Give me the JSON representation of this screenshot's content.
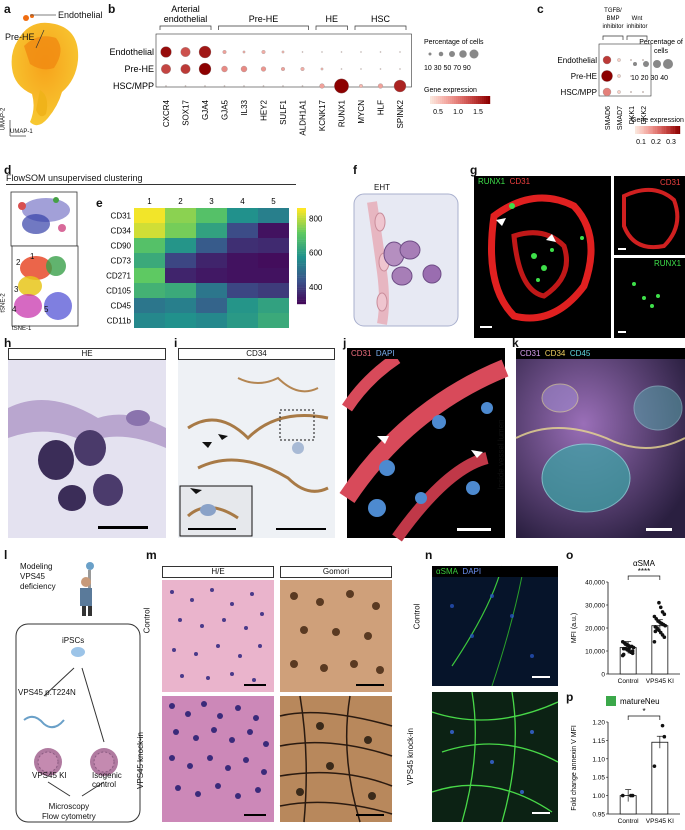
{
  "panels": {
    "a": "a",
    "b": "b",
    "c": "c",
    "d": "d",
    "e": "e",
    "f": "f",
    "g": "g",
    "h": "h",
    "i": "i",
    "j": "j",
    "k": "k",
    "l": "l",
    "m": "m",
    "n": "n",
    "o": "o",
    "p": "p"
  },
  "a": {
    "endothelial": "Endothelial",
    "prehe": "Pre-HE",
    "umap2": "UMAP-2",
    "umap1": "UMAP-1"
  },
  "b": {
    "groups": [
      "Arterial\nendothelial",
      "Pre-HE",
      "HE",
      "HSC"
    ],
    "rows": [
      "Endothelial",
      "Pre-HE",
      "HSC/MPP"
    ],
    "genes": [
      "CXCR4",
      "SOX17",
      "GJA4",
      "GJA5",
      "IL33",
      "HEY2",
      "SULF1",
      "ALDH1A1",
      "KCNK17",
      "RUNX1",
      "MYCN",
      "HLF",
      "SPINK2"
    ],
    "size_legend_title": "Percentage of cells",
    "size_legend_ticks": "10 30 50 70 90",
    "color_legend_title": "Gene expression",
    "color_legend_ticks": [
      "0.5",
      "1.0",
      "1.5"
    ],
    "dots": [
      [
        [
          9,
          0.95
        ],
        [
          8,
          0.65
        ],
        [
          10,
          0.9
        ],
        [
          3,
          0.3
        ],
        [
          2,
          0.25
        ],
        [
          3,
          0.25
        ],
        [
          2,
          0.2
        ],
        [
          1,
          0.1
        ],
        [
          1,
          0.05
        ],
        [
          1,
          0.05
        ],
        [
          1,
          0.05
        ],
        [
          1,
          0.05
        ],
        [
          1,
          0.05
        ]
      ],
      [
        [
          8,
          0.7
        ],
        [
          8,
          0.75
        ],
        [
          10,
          1.0
        ],
        [
          5,
          0.4
        ],
        [
          5,
          0.4
        ],
        [
          4,
          0.35
        ],
        [
          3,
          0.3
        ],
        [
          3,
          0.25
        ],
        [
          2,
          0.2
        ],
        [
          1,
          0.05
        ],
        [
          1,
          0.05
        ],
        [
          1,
          0.05
        ],
        [
          1,
          0.05
        ]
      ],
      [
        [
          1,
          0.05
        ],
        [
          1,
          0.05
        ],
        [
          1,
          0.05
        ],
        [
          1,
          0.05
        ],
        [
          1,
          0.05
        ],
        [
          1,
          0.05
        ],
        [
          1,
          0.05
        ],
        [
          1,
          0.05
        ],
        [
          4,
          0.3
        ],
        [
          12,
          1.0
        ],
        [
          3,
          0.2
        ],
        [
          4,
          0.3
        ],
        [
          10,
          0.85
        ]
      ]
    ]
  },
  "c": {
    "groups": [
      "TGFB/\nBMP\ninhibitor",
      "Wnt\ninhibitor"
    ],
    "rows": [
      "Endothelial",
      "Pre-HE",
      "HSC/MPP"
    ],
    "genes": [
      "SMAD6",
      "SMAD7",
      "DKK1",
      "DKK2"
    ],
    "size_legend_title": "Percentage of\ncells",
    "size_legend_ticks": "10 20 30 40",
    "color_legend_title": "Gene expression",
    "color_legend_ticks": [
      "0.1",
      "0.2",
      "0.3"
    ],
    "dots": [
      [
        [
          5,
          0.75
        ],
        [
          2,
          0.1
        ],
        [
          1,
          0.05
        ],
        [
          1,
          0.05
        ]
      ],
      [
        [
          7,
          1.0
        ],
        [
          2,
          0.1
        ],
        [
          1,
          0.05
        ],
        [
          1,
          0.05
        ]
      ],
      [
        [
          5,
          0.45
        ],
        [
          2,
          0.1
        ],
        [
          1,
          0.05
        ],
        [
          1,
          0.05
        ]
      ]
    ]
  },
  "d": {
    "title": "FlowSOM unsupervised clustering",
    "tsne2": "tSNE-2",
    "tsne1": "tSNE-1",
    "clusters": [
      "1",
      "2",
      "3",
      "4",
      "5"
    ]
  },
  "e": {
    "cols": [
      "1",
      "2",
      "3",
      "4",
      "5"
    ],
    "rows": [
      "CD31",
      "CD34",
      "CD90",
      "CD73",
      "CD271",
      "CD105",
      "CD45",
      "CD11b"
    ],
    "values": [
      [
        850,
        760,
        700,
        580,
        540
      ],
      [
        820,
        740,
        620,
        430,
        330
      ],
      [
        700,
        590,
        460,
        380,
        370
      ],
      [
        640,
        420,
        360,
        330,
        320
      ],
      [
        720,
        360,
        340,
        330,
        330
      ],
      [
        660,
        640,
        520,
        420,
        400
      ],
      [
        520,
        540,
        480,
        590,
        620
      ],
      [
        560,
        580,
        560,
        600,
        640
      ]
    ],
    "colorbar_ticks": [
      "800",
      "600",
      "400"
    ]
  },
  "f": {
    "title": "EHT"
  },
  "g": {
    "runx1": "RUNX1",
    "cd31": "CD31",
    "cd31_small": "CD31",
    "runx1_small": "RUNX1"
  },
  "h": {
    "title": "HE"
  },
  "i": {
    "title": "CD34"
  },
  "j": {
    "cd31": "CD31",
    "dapi": "DAPI"
  },
  "k": {
    "cd31": "CD31",
    "cd34": "CD34",
    "cd45": "CD45",
    "side": "Inside vessel lumen"
  },
  "l": {
    "modeling": "Modeling\nVPS45\ndeficiency",
    "ipsc": "iPSCs",
    "mut": "VPS45 p.T224N",
    "ki": "VPS45 KI",
    "iso": "Isogenic\ncontrol",
    "micro": "Microscopy\nFlow cytometry"
  },
  "m": {
    "he": "H/E",
    "gomori": "Gomori",
    "control": "Control",
    "ki": "VPS45 knock-in"
  },
  "n": {
    "asma": "αSMA",
    "dapi": "DAPI",
    "control": "Control",
    "ki": "VPS45 knock-in"
  },
  "o": {
    "title": "αSMA",
    "ylabel": "MFI (a.u.)",
    "sig": "****",
    "categories": [
      "Control",
      "VPS45 KI"
    ],
    "yticks": [
      "0",
      "10,000",
      "20,000",
      "30,000",
      "40,000"
    ],
    "ylim": [
      0,
      40000
    ],
    "means": [
      11500,
      21000
    ],
    "points": [
      [
        8000,
        9000,
        9500,
        10000,
        10500,
        11000,
        11000,
        11500,
        12000,
        12000,
        12500,
        13000,
        13500,
        14000,
        10000,
        9500,
        11000,
        12500,
        13000,
        8500
      ],
      [
        14000,
        16000,
        17000,
        18000,
        19000,
        20000,
        20500,
        21000,
        21500,
        22000,
        22500,
        23000,
        24000,
        25000,
        26000,
        27000,
        29000,
        31000,
        19500,
        18500
      ]
    ]
  },
  "p": {
    "legend": "matureNeu",
    "ylabel": "Fold change annexin V MFI",
    "sig": "*",
    "categories": [
      "Control",
      "VPS45 KI"
    ],
    "yticks": [
      "0.95",
      "1.00",
      "1.05",
      "1.10",
      "1.15",
      "1.20"
    ],
    "ylim": [
      0.95,
      1.2
    ],
    "means": [
      1.0,
      1.145
    ],
    "points": [
      [
        1.0,
        1.0,
        1.0
      ],
      [
        1.08,
        1.16,
        1.19
      ]
    ],
    "colors": {
      "legend": "#3ba84a"
    }
  }
}
